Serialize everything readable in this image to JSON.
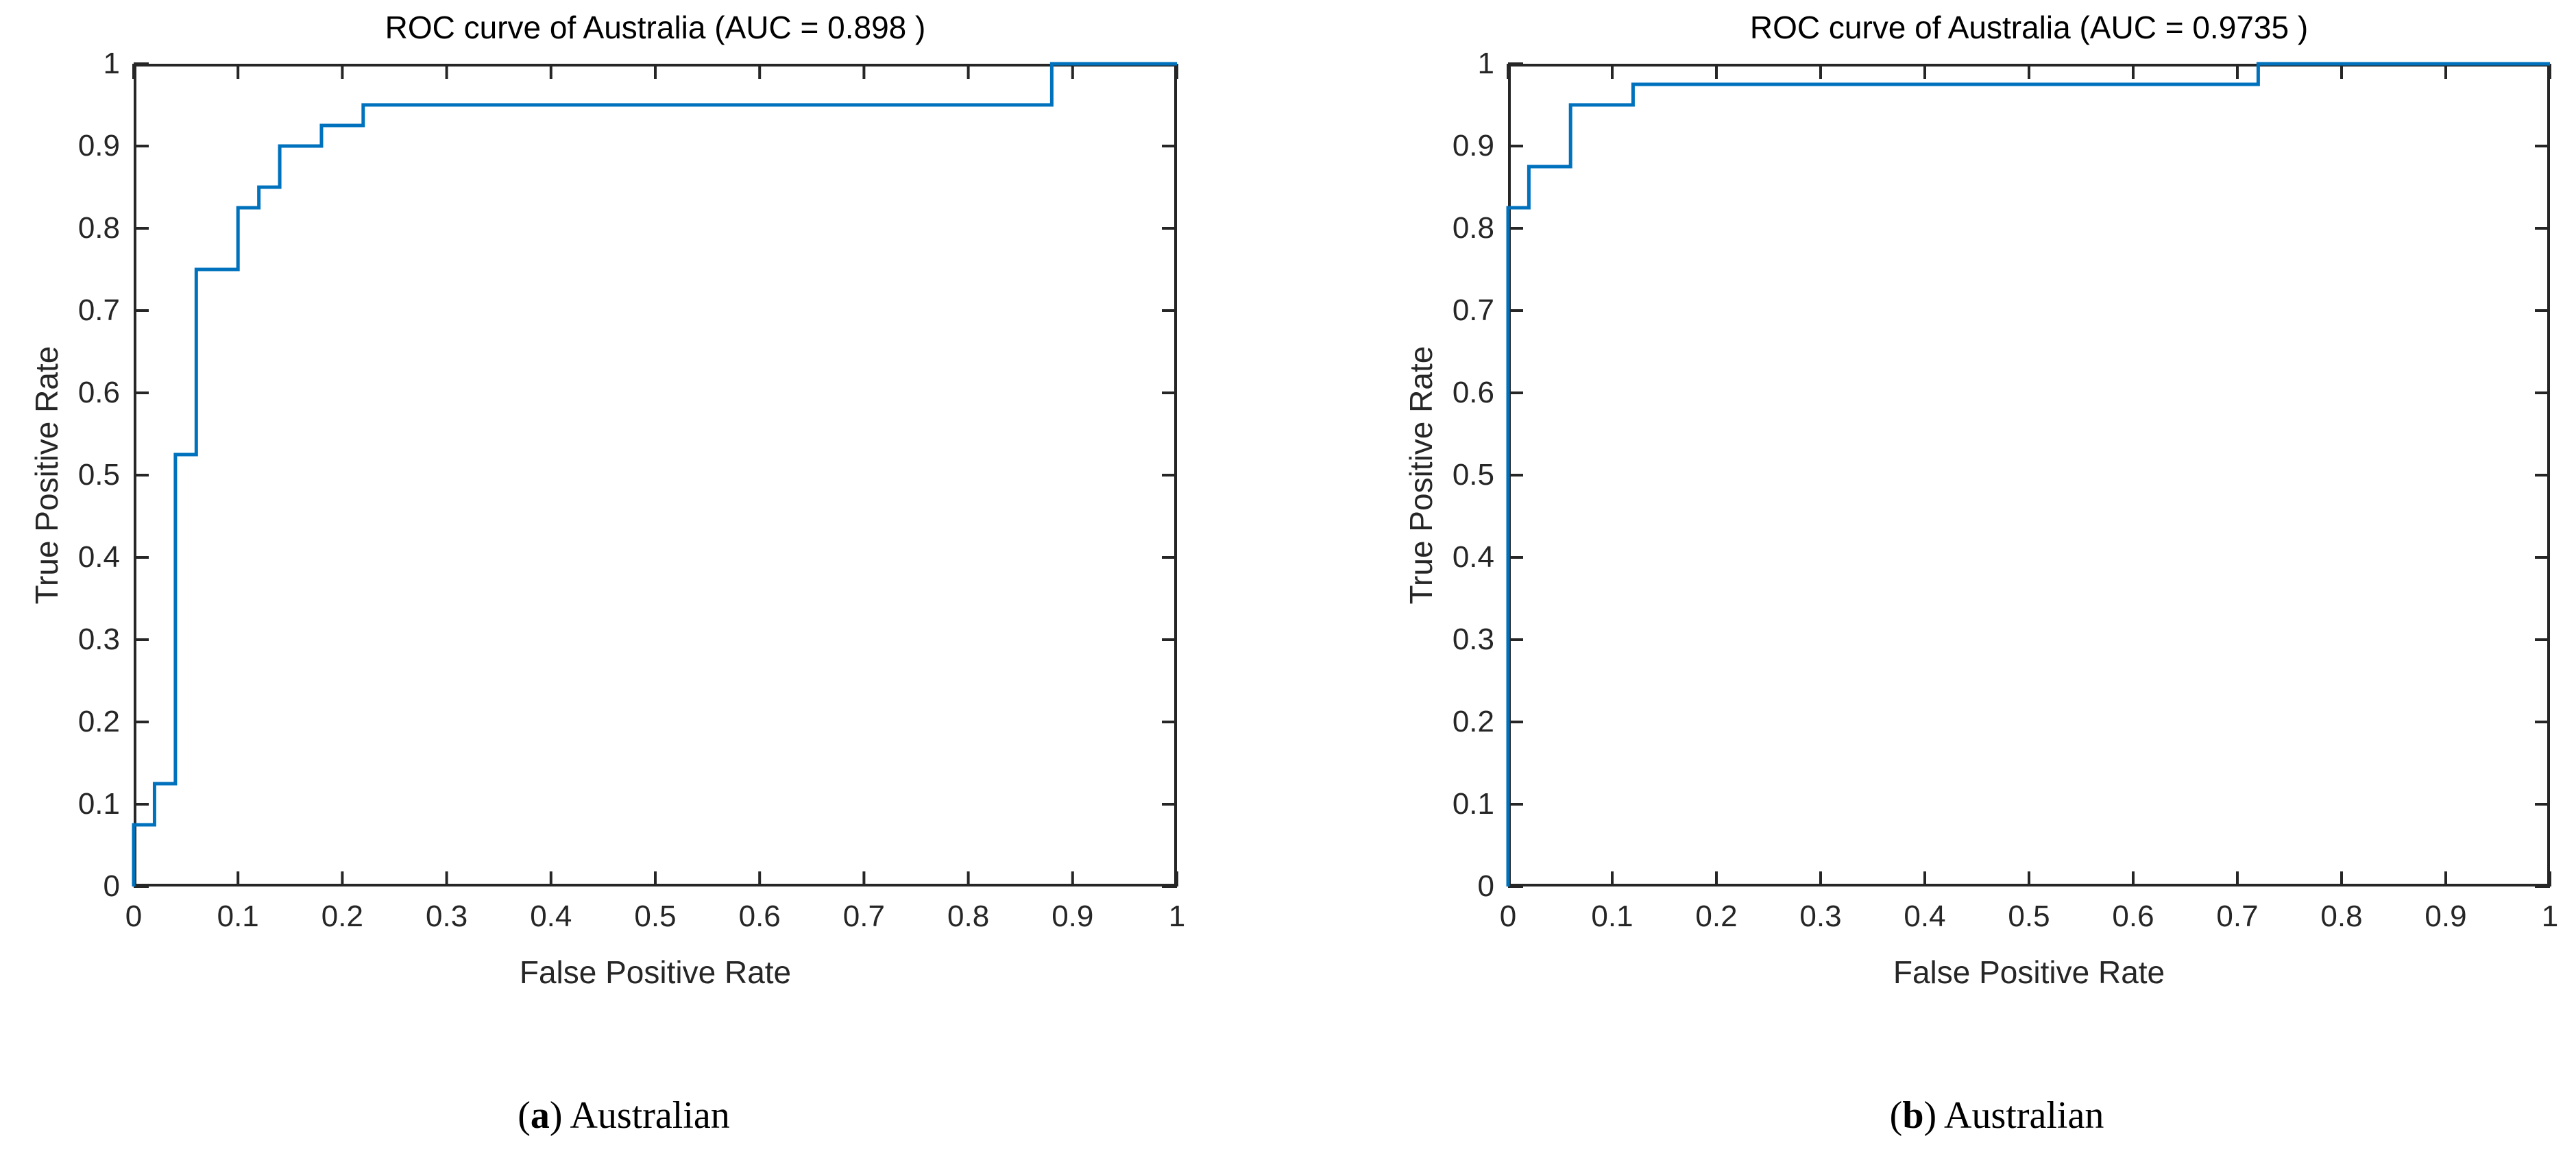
{
  "accent_color": "#0072BD",
  "axis_color": "#262626",
  "chart_data": [
    {
      "type": "line",
      "subtype": "roc-step-curve",
      "title": "ROC curve of Australia (AUC = 0.898 )",
      "xlabel": "False Positive Rate",
      "ylabel": "True Positive Rate",
      "auc": 0.898,
      "caption_paren_open": "(",
      "caption_letter": "a",
      "caption_paren_close": ")",
      "caption_text": " Australian",
      "xlim": [
        0,
        1
      ],
      "ylim": [
        0,
        1
      ],
      "grid": false,
      "legend": false,
      "box": true,
      "tick_direction": "in",
      "x_tick_labels": [
        "0",
        "0.1",
        "0.2",
        "0.3",
        "0.4",
        "0.5",
        "0.6",
        "0.7",
        "0.8",
        "0.9",
        "1"
      ],
      "y_tick_labels": [
        "0",
        "0.1",
        "0.2",
        "0.3",
        "0.4",
        "0.5",
        "0.6",
        "0.7",
        "0.8",
        "0.9",
        "1"
      ],
      "line_color": "#0072BD",
      "series": [
        {
          "name": "ROC",
          "x": [
            0,
            0,
            0.02,
            0.02,
            0.04,
            0.04,
            0.06,
            0.06,
            0.1,
            0.1,
            0.12,
            0.12,
            0.14,
            0.14,
            0.18,
            0.18,
            0.22,
            0.22,
            0.88,
            0.88,
            1
          ],
          "y": [
            0,
            0.075,
            0.075,
            0.125,
            0.125,
            0.525,
            0.525,
            0.75,
            0.75,
            0.825,
            0.825,
            0.85,
            0.85,
            0.9,
            0.9,
            0.925,
            0.925,
            0.95,
            0.95,
            1,
            1
          ]
        }
      ]
    },
    {
      "type": "line",
      "subtype": "roc-step-curve",
      "title": "ROC curve of Australia (AUC = 0.9735 )",
      "xlabel": "False Positive Rate",
      "ylabel": "True Positive Rate",
      "auc": 0.9735,
      "caption_paren_open": "(",
      "caption_letter": "b",
      "caption_paren_close": ")",
      "caption_text": " Australian",
      "xlim": [
        0,
        1
      ],
      "ylim": [
        0,
        1
      ],
      "grid": false,
      "legend": false,
      "box": true,
      "tick_direction": "in",
      "x_tick_labels": [
        "0",
        "0.1",
        "0.2",
        "0.3",
        "0.4",
        "0.5",
        "0.6",
        "0.7",
        "0.8",
        "0.9",
        "1"
      ],
      "y_tick_labels": [
        "0",
        "0.1",
        "0.2",
        "0.3",
        "0.4",
        "0.5",
        "0.6",
        "0.7",
        "0.8",
        "0.9",
        "1"
      ],
      "line_color": "#0072BD",
      "series": [
        {
          "name": "ROC",
          "x": [
            0,
            0,
            0.02,
            0.02,
            0.06,
            0.06,
            0.12,
            0.12,
            0.72,
            0.72,
            1
          ],
          "y": [
            0,
            0.825,
            0.825,
            0.875,
            0.875,
            0.95,
            0.95,
            0.975,
            0.975,
            1,
            1
          ]
        }
      ]
    }
  ]
}
